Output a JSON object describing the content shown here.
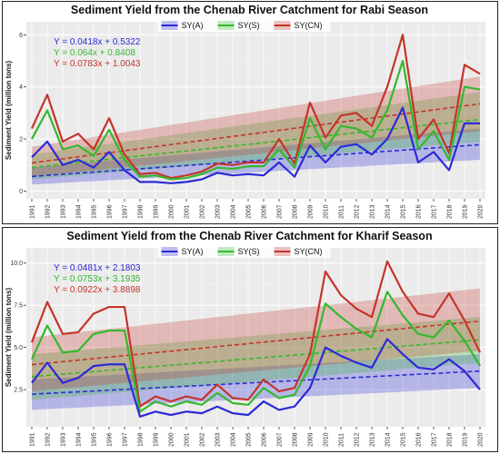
{
  "colors": {
    "A": "#2b2bd6",
    "S": "#35b82e",
    "CN": "#c4352b"
  },
  "chart_data": [
    {
      "type": "line",
      "title": "Sediment Yield from the Chenab River Catchment for Rabi Season",
      "ylabel": "Sediment Yield (million tons)",
      "xlabel": "",
      "x": [
        1991,
        1992,
        1993,
        1994,
        1995,
        1996,
        1997,
        1998,
        1999,
        2000,
        2001,
        2002,
        2003,
        2004,
        2005,
        2006,
        2007,
        2008,
        2009,
        2010,
        2011,
        2012,
        2013,
        2014,
        2015,
        2016,
        2017,
        2018,
        2019,
        2020
      ],
      "ylim": [
        -0.3,
        6.5
      ],
      "yticks": [
        0,
        2,
        4,
        6
      ],
      "legend": [
        "SY(A)",
        "SY(S)",
        "SY(CN)"
      ],
      "legend_placement": "top-center",
      "grid": true,
      "series": [
        {
          "name": "SY(A)",
          "color": "#2b2bd6",
          "values": [
            1.3,
            1.9,
            1.0,
            1.2,
            0.9,
            1.5,
            0.8,
            0.35,
            0.35,
            0.3,
            0.35,
            0.45,
            0.7,
            0.6,
            0.65,
            0.6,
            1.1,
            0.55,
            1.75,
            1.1,
            1.7,
            1.8,
            1.4,
            2.0,
            3.2,
            1.1,
            1.5,
            0.8,
            2.6,
            2.6
          ]
        },
        {
          "name": "SY(S)",
          "color": "#35b82e",
          "values": [
            2.0,
            3.1,
            1.6,
            1.75,
            1.35,
            2.35,
            1.2,
            0.55,
            0.6,
            0.45,
            0.5,
            0.65,
            0.9,
            0.85,
            0.95,
            0.95,
            1.6,
            0.9,
            2.8,
            1.6,
            2.5,
            2.4,
            2.05,
            3.1,
            5.0,
            1.6,
            2.3,
            1.2,
            4.0,
            3.9
          ]
        },
        {
          "name": "SY(CN)",
          "color": "#c4352b",
          "values": [
            2.4,
            3.7,
            1.9,
            2.2,
            1.6,
            2.8,
            1.4,
            0.65,
            0.7,
            0.5,
            0.6,
            0.75,
            1.05,
            1.0,
            1.1,
            1.1,
            2.0,
            1.05,
            3.4,
            2.05,
            2.9,
            3.0,
            2.5,
            4.0,
            6.0,
            2.0,
            2.75,
            1.45,
            4.85,
            4.5
          ]
        }
      ],
      "trends": [
        {
          "name": "SY(A)",
          "color": "#2b2bd6",
          "start": 0.56,
          "end": 1.78,
          "band_low": [
            0.25,
            1.2
          ],
          "band_high": [
            0.9,
            2.4
          ]
        },
        {
          "name": "SY(S)",
          "color": "#35b82e",
          "start": 0.9,
          "end": 2.75,
          "band_low": [
            0.45,
            1.9
          ],
          "band_high": [
            1.4,
            3.8
          ]
        },
        {
          "name": "SY(CN)",
          "color": "#c4352b",
          "start": 1.08,
          "end": 3.35,
          "band_low": [
            0.55,
            2.3
          ],
          "band_high": [
            1.7,
            4.4
          ]
        }
      ],
      "equations": [
        {
          "text": "Y = 0.0418x + 0.5322",
          "color": "#2b2bd6"
        },
        {
          "text": "Y = 0.064x + 0.8408",
          "color": "#35b82e"
        },
        {
          "text": "Y = 0.0783x + 1.0043",
          "color": "#c4352b"
        }
      ]
    },
    {
      "type": "line",
      "title": "Sediment Yield from the Chenab River Catchment for Kharif Season",
      "ylabel": "Sediment Yield (million tons)",
      "xlabel": "",
      "x": [
        1991,
        1992,
        1993,
        1994,
        1995,
        1996,
        1997,
        1998,
        1999,
        2000,
        2001,
        2002,
        2003,
        2004,
        2005,
        2006,
        2007,
        2008,
        2009,
        2010,
        2011,
        2012,
        2013,
        2014,
        2015,
        2016,
        2017,
        2018,
        2019,
        2020
      ],
      "ylim": [
        0.3,
        10.9
      ],
      "yticks": [
        2.5,
        5.0,
        7.5,
        10.0
      ],
      "legend": [
        "SY(A)",
        "SY(S)",
        "SY(CN)"
      ],
      "legend_placement": "top-center",
      "grid": true,
      "series": [
        {
          "name": "SY(A)",
          "color": "#2b2bd6",
          "values": [
            2.9,
            4.1,
            2.9,
            3.2,
            3.9,
            4.0,
            4.0,
            0.9,
            1.2,
            1.0,
            1.2,
            1.1,
            1.5,
            1.1,
            1.0,
            1.8,
            1.3,
            1.5,
            2.6,
            5.0,
            4.5,
            4.1,
            3.8,
            5.5,
            4.6,
            3.8,
            3.7,
            4.3,
            3.6,
            2.5
          ]
        },
        {
          "name": "SY(S)",
          "color": "#35b82e",
          "values": [
            4.3,
            6.3,
            4.7,
            4.8,
            5.8,
            6.0,
            6.0,
            1.2,
            1.8,
            1.5,
            1.8,
            1.6,
            2.3,
            1.7,
            1.6,
            2.6,
            2.0,
            2.2,
            3.9,
            7.6,
            6.8,
            6.1,
            5.6,
            8.3,
            6.9,
            5.8,
            5.6,
            6.6,
            5.4,
            3.9
          ]
        },
        {
          "name": "SY(CN)",
          "color": "#c4352b",
          "values": [
            5.3,
            7.7,
            5.8,
            5.9,
            7.0,
            7.4,
            7.4,
            1.5,
            2.1,
            1.8,
            2.1,
            1.9,
            2.8,
            2.0,
            1.9,
            3.1,
            2.4,
            2.6,
            4.6,
            9.5,
            8.1,
            7.3,
            6.8,
            10.1,
            8.3,
            7.0,
            6.8,
            8.2,
            6.6,
            4.7
          ]
        }
      ],
      "trends": [
        {
          "name": "SY(A)",
          "color": "#2b2bd6",
          "start": 2.23,
          "end": 3.6,
          "band_low": [
            1.3,
            2.6
          ],
          "band_high": [
            3.1,
            4.6
          ]
        },
        {
          "name": "SY(S)",
          "color": "#35b82e",
          "start": 3.27,
          "end": 5.45,
          "band_low": [
            1.9,
            4.1
          ],
          "band_high": [
            4.6,
            6.8
          ]
        },
        {
          "name": "SY(CN)",
          "color": "#c4352b",
          "start": 3.98,
          "end": 6.56,
          "band_low": [
            2.4,
            4.8
          ],
          "band_high": [
            5.6,
            8.5
          ]
        }
      ],
      "equations": [
        {
          "text": "Y = 0.0481x + 2.1803",
          "color": "#2b2bd6"
        },
        {
          "text": "Y = 0.0753x + 3.1935",
          "color": "#35b82e"
        },
        {
          "text": "Y = 0.0922x + 3.8898",
          "color": "#c4352b"
        }
      ]
    }
  ]
}
